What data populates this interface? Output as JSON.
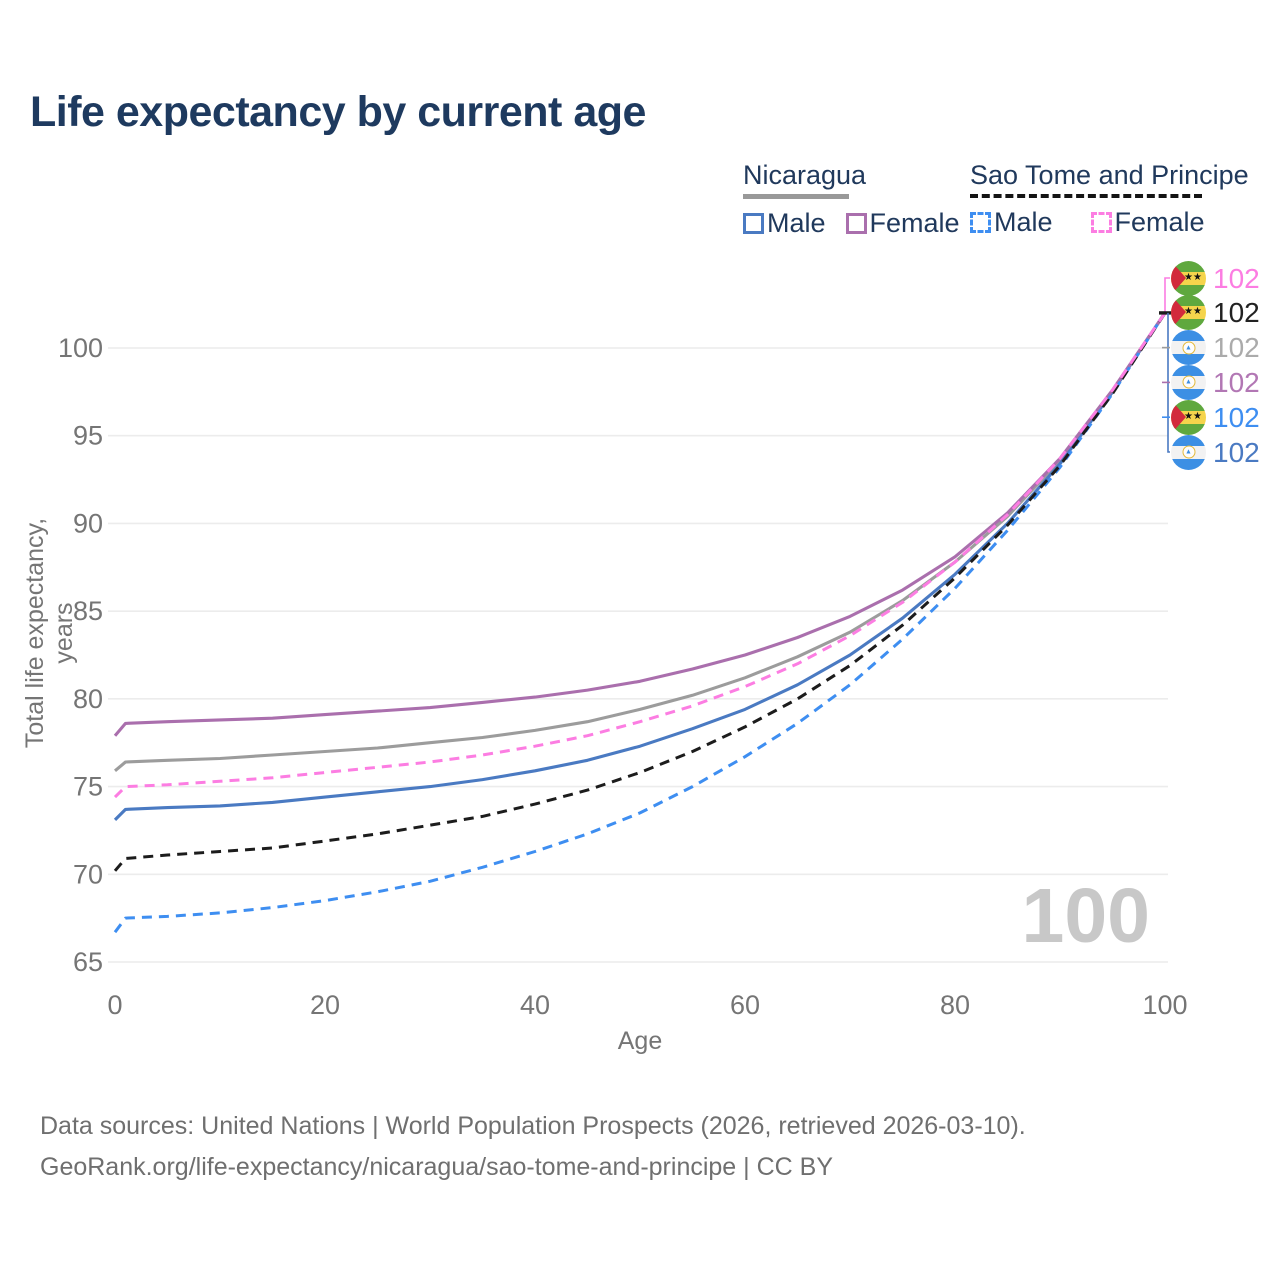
{
  "title": "Life expectancy by current age",
  "legend": {
    "groups": [
      {
        "name": "Nicaragua",
        "line_style": "solid",
        "underline_color": "#999999",
        "items": [
          {
            "label": "Male",
            "color": "#4a7ac2",
            "dashed": false
          },
          {
            "label": "Female",
            "color": "#aa6fad",
            "dashed": false
          }
        ]
      },
      {
        "name": "Sao Tome and Principe",
        "line_style": "dashed",
        "underline_color": "#141414",
        "items": [
          {
            "label": "Male",
            "color": "#3e8ef1",
            "dashed": true
          },
          {
            "label": "Female",
            "color": "#fc7de2",
            "dashed": true
          }
        ]
      }
    ]
  },
  "watermark": "100",
  "end_labels": [
    {
      "value": "102",
      "flag": "sao-tome",
      "series": "st-female",
      "color": "#fc7de2"
    },
    {
      "value": "102",
      "flag": "sao-tome",
      "series": "st-total",
      "color": "#222222"
    },
    {
      "value": "102",
      "flag": "nicaragua",
      "series": "ni-total",
      "color": "#ababab"
    },
    {
      "value": "102",
      "flag": "nicaragua",
      "series": "ni-female",
      "color": "#b277b4"
    },
    {
      "value": "102",
      "flag": "sao-tome",
      "series": "st-male",
      "color": "#3e8ef1"
    },
    {
      "value": "102",
      "flag": "nicaragua",
      "series": "ni-male",
      "color": "#4a7ac2"
    }
  ],
  "chart_data": {
    "type": "line",
    "title": "Life expectancy by current age",
    "xlabel": "Age",
    "ylabel": "Total life expectancy, years",
    "xlim": [
      0,
      100
    ],
    "ylim": [
      65,
      102
    ],
    "xticks": [
      0,
      20,
      40,
      60,
      80,
      100
    ],
    "yticks": [
      65,
      70,
      75,
      80,
      85,
      90,
      95,
      100
    ],
    "grid": true,
    "legend_position": "top-right",
    "x": [
      0,
      1,
      5,
      10,
      15,
      20,
      25,
      30,
      35,
      40,
      45,
      50,
      55,
      60,
      65,
      70,
      75,
      80,
      85,
      90,
      95,
      100
    ],
    "series": [
      {
        "id": "ni-total",
        "name": "Nicaragua (both sexes)",
        "color": "#9c9c9c",
        "dash": "solid",
        "values": [
          75.9,
          76.4,
          76.5,
          76.6,
          76.8,
          77.0,
          77.2,
          77.5,
          77.8,
          78.2,
          78.7,
          79.4,
          80.2,
          81.2,
          82.4,
          83.8,
          85.6,
          87.8,
          90.4,
          93.6,
          97.5,
          102
        ]
      },
      {
        "id": "ni-male",
        "name": "Nicaragua Male",
        "color": "#4a7ac2",
        "dash": "solid",
        "values": [
          73.1,
          73.7,
          73.8,
          73.9,
          74.1,
          74.4,
          74.7,
          75.0,
          75.4,
          75.9,
          76.5,
          77.3,
          78.3,
          79.4,
          80.8,
          82.5,
          84.6,
          87.1,
          90.0,
          93.4,
          97.5,
          102
        ]
      },
      {
        "id": "ni-female",
        "name": "Nicaragua Female",
        "color": "#aa6fad",
        "dash": "solid",
        "values": [
          77.9,
          78.6,
          78.7,
          78.8,
          78.9,
          79.1,
          79.3,
          79.5,
          79.8,
          80.1,
          80.5,
          81.0,
          81.7,
          82.5,
          83.5,
          84.7,
          86.2,
          88.1,
          90.6,
          93.7,
          97.6,
          102
        ]
      },
      {
        "id": "st-male",
        "name": "Sao Tome and Principe Male",
        "color": "#3e8ef1",
        "dash": "dashed",
        "values": [
          66.7,
          67.5,
          67.6,
          67.8,
          68.1,
          68.5,
          69.0,
          69.6,
          70.4,
          71.3,
          72.3,
          73.5,
          75.0,
          76.7,
          78.6,
          80.8,
          83.4,
          86.3,
          89.6,
          93.2,
          97.4,
          102
        ]
      },
      {
        "id": "st-total",
        "name": "Sao Tome and Principe (both sexes)",
        "color": "#1c1c1c",
        "dash": "dashed",
        "values": [
          70.2,
          70.9,
          71.1,
          71.3,
          71.5,
          71.9,
          72.3,
          72.8,
          73.3,
          74.0,
          74.8,
          75.8,
          77.0,
          78.4,
          80.0,
          81.9,
          84.2,
          86.9,
          89.9,
          93.3,
          97.4,
          102
        ]
      },
      {
        "id": "st-female",
        "name": "Sao Tome and Principe Female",
        "color": "#fc7de2",
        "dash": "dashed",
        "values": [
          74.4,
          75.0,
          75.1,
          75.3,
          75.5,
          75.8,
          76.1,
          76.4,
          76.8,
          77.3,
          77.9,
          78.7,
          79.6,
          80.7,
          82.0,
          83.6,
          85.5,
          87.8,
          90.5,
          93.7,
          97.6,
          102
        ]
      }
    ]
  },
  "footer": {
    "line1": "Data sources: United Nations | World Population Prospects (2026, retrieved 2026-03-10).",
    "line2": "GeoRank.org/life-expectancy/nicaragua/sao-tome-and-principe | CC BY"
  }
}
